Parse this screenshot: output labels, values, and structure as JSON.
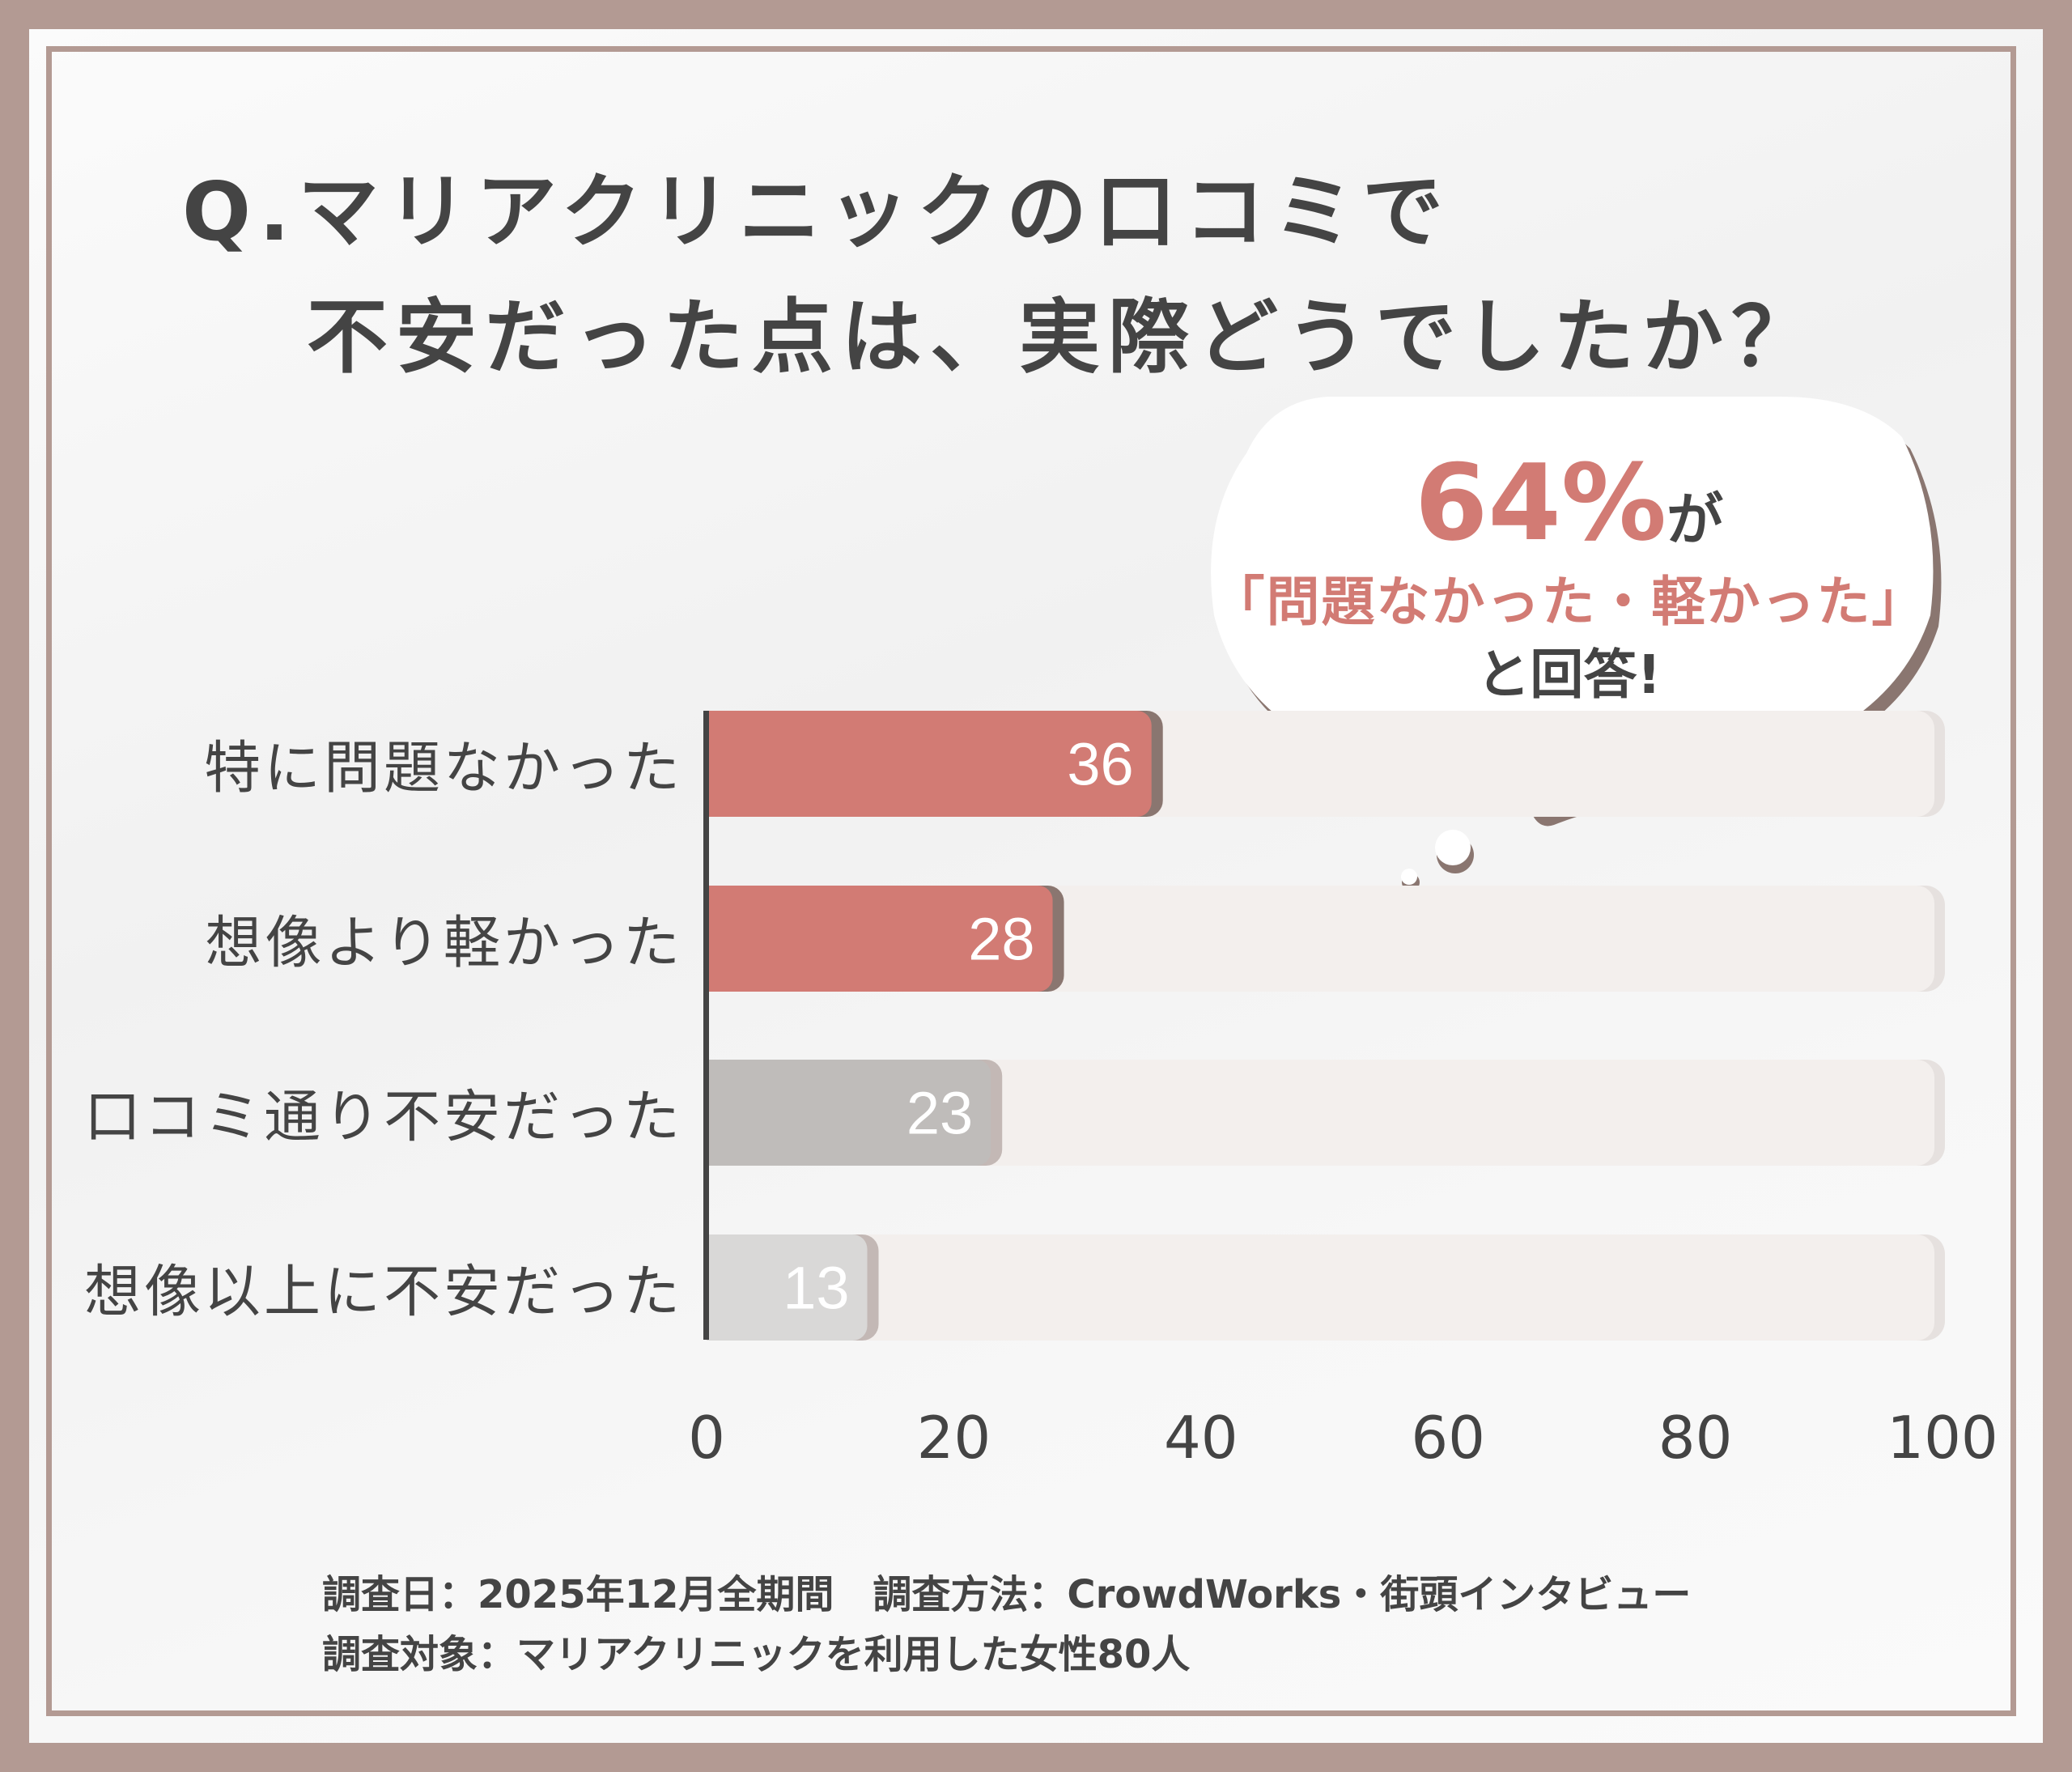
{
  "title": {
    "line1": "Q.マリアクリニックの口コミで",
    "line2": "不安だった点は、実際どうでしたか？"
  },
  "callout": {
    "percent": "64%",
    "particle": "が",
    "quote": "「問題なかった・軽かった」",
    "suffix": "と回答!"
  },
  "chart_data": {
    "type": "bar",
    "orientation": "horizontal",
    "categories": [
      "特に問題なかった",
      "想像より軽かった",
      "口コミ通り不安だった",
      "想像以上に不安だった"
    ],
    "values": [
      36,
      28,
      23,
      13
    ],
    "xlim": [
      0,
      100
    ],
    "xticks": [
      "0",
      "20",
      "40",
      "60",
      "80",
      "100"
    ],
    "bar_colors": [
      "#d27b74",
      "#d27b74",
      "#bfbcba",
      "#d9d8d7"
    ],
    "track_color": "#f3efed",
    "grid": false
  },
  "footer": {
    "line1": "調査日：2025年12月全期間　調査方法：CrowdWorks・街頭インタビュー",
    "line2": "調査対象：マリアクリニックを利用した女性80人"
  }
}
